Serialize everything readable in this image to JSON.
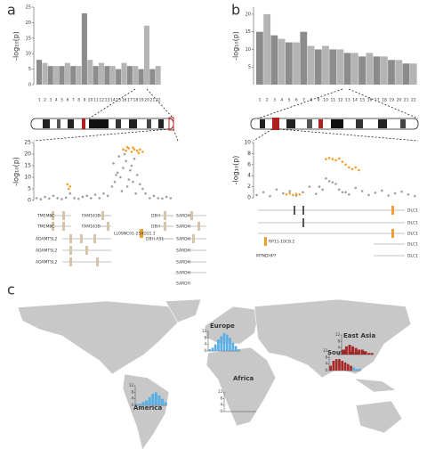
{
  "chart_data": [
    {
      "type": "manhattan",
      "panel": "a",
      "ylabel": "-log₁₀(p)",
      "categories": [
        "1",
        "2",
        "3",
        "4",
        "5",
        "6",
        "7",
        "8",
        "9",
        "10",
        "11",
        "12",
        "13",
        "14",
        "15",
        "16",
        "17",
        "18",
        "19",
        "20",
        "21",
        "22"
      ],
      "values": [
        8,
        7,
        6,
        6,
        6,
        7,
        6,
        6,
        23,
        8,
        6,
        7,
        6,
        6,
        5,
        7,
        6,
        6,
        5,
        19,
        5,
        6
      ],
      "colors": [
        "#8c8c8c",
        "#b4b4b4"
      ],
      "ylim": [
        0,
        25
      ],
      "yticks": [
        0,
        5,
        10,
        15,
        20,
        25
      ]
    },
    {
      "type": "manhattan",
      "panel": "b",
      "ylabel": "-log₁₀(p)",
      "categories": [
        "1",
        "2",
        "3",
        "4",
        "5",
        "6",
        "7",
        "8",
        "9",
        "10",
        "11",
        "12",
        "13",
        "14",
        "15",
        "16",
        "17",
        "18",
        "19",
        "20",
        "21",
        "22"
      ],
      "values": [
        15,
        20,
        14,
        13,
        12,
        12,
        15,
        11,
        10,
        11,
        10,
        10,
        9,
        9,
        8,
        9,
        8,
        8,
        7,
        7,
        6,
        6
      ],
      "colors": [
        "#8c8c8c",
        "#b4b4b4"
      ],
      "ylim": [
        0,
        22
      ],
      "yticks": [
        5,
        10,
        15,
        20
      ]
    },
    {
      "type": "regional",
      "ylabel": "-log₁₀(p)",
      "xlim": [
        0,
        100
      ],
      "ylim": [
        0,
        25
      ],
      "yticks": [
        0,
        5,
        10,
        15,
        20,
        25
      ],
      "points": [
        {
          "color": "#a0a0a0",
          "x": [
            2,
            5,
            8,
            11,
            14,
            17,
            20,
            23,
            26,
            29,
            32,
            35,
            38,
            41,
            44,
            47,
            50,
            53,
            56,
            58,
            60,
            62,
            64,
            66,
            68,
            70,
            72,
            74,
            76,
            78,
            80,
            83,
            86,
            89,
            92,
            95,
            98,
            57,
            61,
            65,
            69,
            63,
            67,
            71,
            59,
            73
          ],
          "values": [
            1,
            0.5,
            1.5,
            0.8,
            2,
            1,
            0.6,
            1.2,
            3,
            1,
            0.7,
            1.5,
            2,
            1,
            2.5,
            1,
            3,
            2,
            6,
            8,
            12,
            10,
            14,
            17,
            9,
            15,
            18,
            11,
            7,
            5,
            3,
            1,
            2,
            1,
            0.8,
            1.5,
            1,
            16,
            19,
            20,
            13,
            4,
            6,
            8,
            11,
            3
          ]
        },
        {
          "color": "#f0a030",
          "x": [
            24,
            25,
            26,
            64,
            66,
            68,
            70,
            72,
            74,
            76,
            78,
            67,
            71,
            75
          ],
          "values": [
            7,
            5,
            6,
            22,
            21.5,
            22.5,
            21,
            22,
            21.5,
            22,
            21,
            23,
            22.8,
            20.5
          ]
        }
      ],
      "genes": [
        "TMEM8C",
        "TMEM8C",
        "FAM163B",
        "FAM163B",
        "ADAMTSL2",
        "ADAMTSL2",
        "ADAMTSL2",
        "LL09NC01-254D11.1",
        "DBH",
        "DBH",
        "DBH-AS1",
        "SARDH",
        "SARDH",
        "SARDH",
        "SARDH",
        "SARDH",
        "SARDH",
        "SARDH"
      ]
    },
    {
      "type": "regional",
      "ylabel": "-log₁₀(p)",
      "xlim": [
        0,
        100
      ],
      "ylim": [
        0,
        10
      ],
      "yticks": [
        0,
        2,
        4,
        6,
        8,
        10
      ],
      "points": [
        {
          "color": "#a0a0a0",
          "x": [
            2,
            6,
            10,
            14,
            18,
            22,
            26,
            30,
            34,
            38,
            42,
            46,
            50,
            54,
            58,
            62,
            66,
            70,
            74,
            78,
            82,
            86,
            90,
            94,
            98,
            40,
            44,
            48,
            52,
            56
          ],
          "values": [
            0.5,
            1,
            0.3,
            1.5,
            0.8,
            1.2,
            0.4,
            1,
            2,
            0.7,
            1.5,
            3,
            2.5,
            1,
            0.6,
            1.8,
            1.2,
            0.5,
            0.9,
            1.3,
            0.4,
            0.8,
            1.1,
            0.6,
            0.3,
            2,
            3.5,
            2.8,
            1.5,
            1
          ]
        },
        {
          "color": "#f0a030",
          "x": [
            20,
            22,
            24,
            26,
            28,
            44,
            46,
            48,
            50,
            52,
            54,
            56,
            58,
            60,
            62,
            64
          ],
          "values": [
            0.6,
            0.8,
            0.5,
            0.7,
            0.6,
            7,
            7.2,
            7,
            6.8,
            7.1,
            6.5,
            6,
            5.5,
            5.2,
            5.5,
            5
          ]
        }
      ],
      "genes": [
        "DLC1",
        "DLC1",
        "DLC1",
        "RP11-10C8.2",
        "DLC1",
        "MTNDHP7",
        "DLC1"
      ]
    },
    {
      "type": "map",
      "panel": "c",
      "regions": [
        {
          "name": "Europe",
          "ylim": [
            0,
            12
          ],
          "yticks": [
            0,
            4,
            8,
            12
          ],
          "bars": [
            {
              "color": "#5aaee6",
              "values": [
                1,
                2,
                4,
                7,
                9,
                11,
                10,
                8,
                5,
                3,
                1
              ]
            }
          ]
        },
        {
          "name": "America",
          "ylim": [
            0,
            12
          ],
          "yticks": [
            0,
            4,
            8,
            12
          ],
          "bars": [
            {
              "color": "#5aaee6",
              "values": [
                1,
                1,
                2,
                3,
                5,
                7,
                8,
                6,
                4,
                2
              ]
            }
          ]
        },
        {
          "name": "Africa",
          "ylim": [
            0,
            12
          ],
          "yticks": [
            0,
            4,
            8,
            12
          ],
          "bars": []
        },
        {
          "name": "South Asia",
          "ylim": [
            0,
            12
          ],
          "yticks": [
            0,
            4,
            8,
            12
          ],
          "bars": [
            {
              "color": "#a82828",
              "values": [
                3,
                6,
                7,
                7,
                6,
                5,
                4,
                3
              ]
            },
            {
              "color": "#5aaee6",
              "values": [
                2,
                1,
                1
              ]
            }
          ]
        },
        {
          "name": "East Asia",
          "ylim": [
            0,
            12
          ],
          "yticks": [
            0,
            4,
            8,
            12
          ],
          "bars": [
            {
              "color": "#a82828",
              "values": [
                3,
                5,
                6,
                5,
                4,
                3,
                3,
                2,
                1,
                1
              ]
            }
          ]
        }
      ]
    }
  ]
}
